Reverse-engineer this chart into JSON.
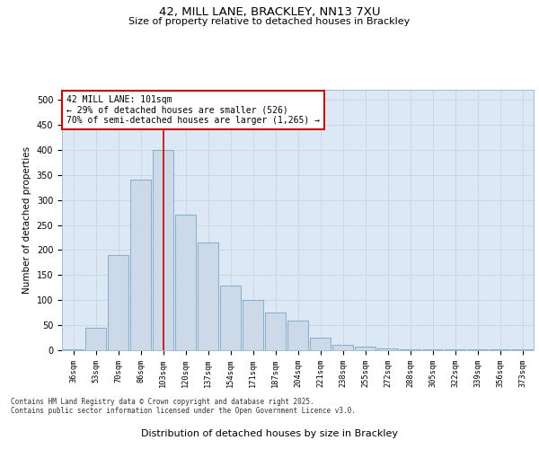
{
  "title1": "42, MILL LANE, BRACKLEY, NN13 7XU",
  "title2": "Size of property relative to detached houses in Brackley",
  "xlabel": "Distribution of detached houses by size in Brackley",
  "ylabel": "Number of detached properties",
  "categories": [
    "36sqm",
    "53sqm",
    "70sqm",
    "86sqm",
    "103sqm",
    "120sqm",
    "137sqm",
    "154sqm",
    "171sqm",
    "187sqm",
    "204sqm",
    "221sqm",
    "238sqm",
    "255sqm",
    "272sqm",
    "288sqm",
    "305sqm",
    "322sqm",
    "339sqm",
    "356sqm",
    "373sqm"
  ],
  "values": [
    2,
    45,
    190,
    340,
    400,
    270,
    215,
    130,
    100,
    75,
    60,
    25,
    10,
    8,
    3,
    2,
    1,
    1,
    1,
    1,
    1
  ],
  "bar_color": "#ccd9e8",
  "bar_edge_color": "#6699bb",
  "vline_x_index": 4,
  "vline_color": "#cc0000",
  "annotation_text": "42 MILL LANE: 101sqm\n← 29% of detached houses are smaller (526)\n70% of semi-detached houses are larger (1,265) →",
  "annotation_box_color": "#ffffff",
  "annotation_box_edge": "#cc0000",
  "grid_color": "#c8d8e8",
  "background_color": "#dce8f4",
  "ylim": [
    0,
    520
  ],
  "yticks": [
    0,
    50,
    100,
    150,
    200,
    250,
    300,
    350,
    400,
    450,
    500
  ],
  "footer": "Contains HM Land Registry data © Crown copyright and database right 2025.\nContains public sector information licensed under the Open Government Licence v3.0."
}
